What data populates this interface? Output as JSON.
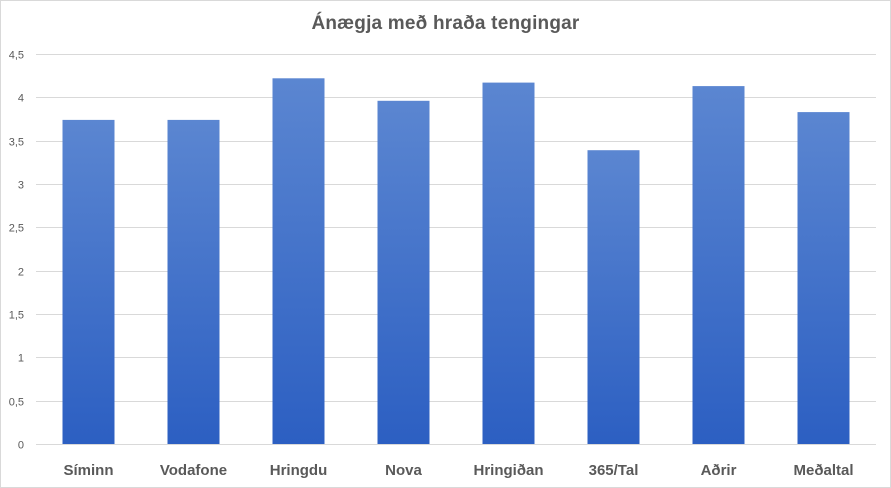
{
  "chart_data": {
    "type": "bar",
    "title": "Ánægja með hraða tengingar",
    "xlabel": "",
    "ylabel": "",
    "categories": [
      "Síminn",
      "Vodafone",
      "Hringdu",
      "Nova",
      "Hringiðan",
      "365/Tal",
      "Aðrir",
      "Meðaltal"
    ],
    "values": [
      3.74,
      3.74,
      4.22,
      3.96,
      4.17,
      3.39,
      4.13,
      3.83
    ],
    "ylim": [
      0,
      4.5
    ],
    "yticks": [
      "0",
      "0,5",
      "1",
      "1,5",
      "2",
      "2,5",
      "3",
      "3,5",
      "4",
      "4,5"
    ],
    "grid": true,
    "legend": "none",
    "colors": {
      "bar_top": "#5b86d1",
      "bar_bottom": "#2c5fc2",
      "grid": "#d9d9d9",
      "text": "#595959"
    }
  }
}
